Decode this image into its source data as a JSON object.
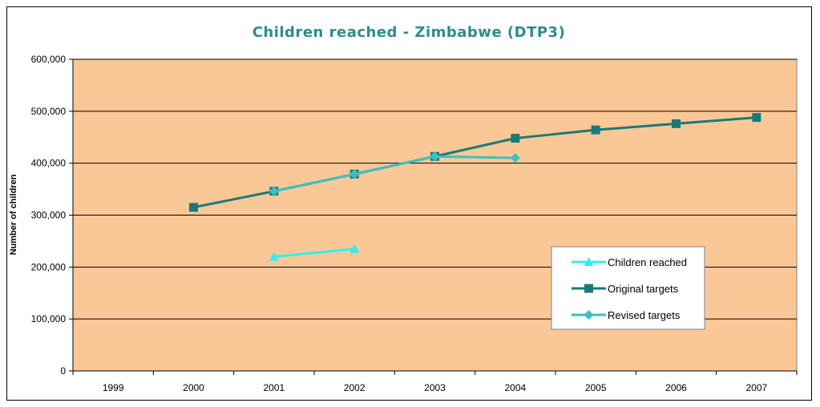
{
  "chart_data": {
    "type": "line",
    "title": "Children reached - Zimbabwe (DTP3)",
    "xlabel": "",
    "ylabel": "Number of children",
    "categories": [
      "1999",
      "2000",
      "2001",
      "2002",
      "2003",
      "2004",
      "2005",
      "2006",
      "2007"
    ],
    "y_tick_labels": [
      "0",
      "100,000",
      "200,000",
      "300,000",
      "400,000",
      "500,000",
      "600,000"
    ],
    "ylim": [
      0,
      600000
    ],
    "grid": true,
    "legend_position": "right",
    "plot_background": "#fac896",
    "series": [
      {
        "name": "Children reached",
        "marker": "triangle",
        "color": "#33eeee",
        "values": [
          null,
          null,
          220000,
          235000,
          null,
          null,
          null,
          null,
          null
        ]
      },
      {
        "name": "Original targets",
        "marker": "square",
        "color": "#1a7a7a",
        "values": [
          null,
          315000,
          346000,
          379000,
          413000,
          448000,
          464000,
          476000,
          488000
        ]
      },
      {
        "name": "Revised targets",
        "marker": "diamond",
        "color": "#3ebfbf",
        "values": [
          null,
          null,
          346000,
          379000,
          413000,
          410000,
          null,
          null,
          null
        ]
      }
    ]
  }
}
